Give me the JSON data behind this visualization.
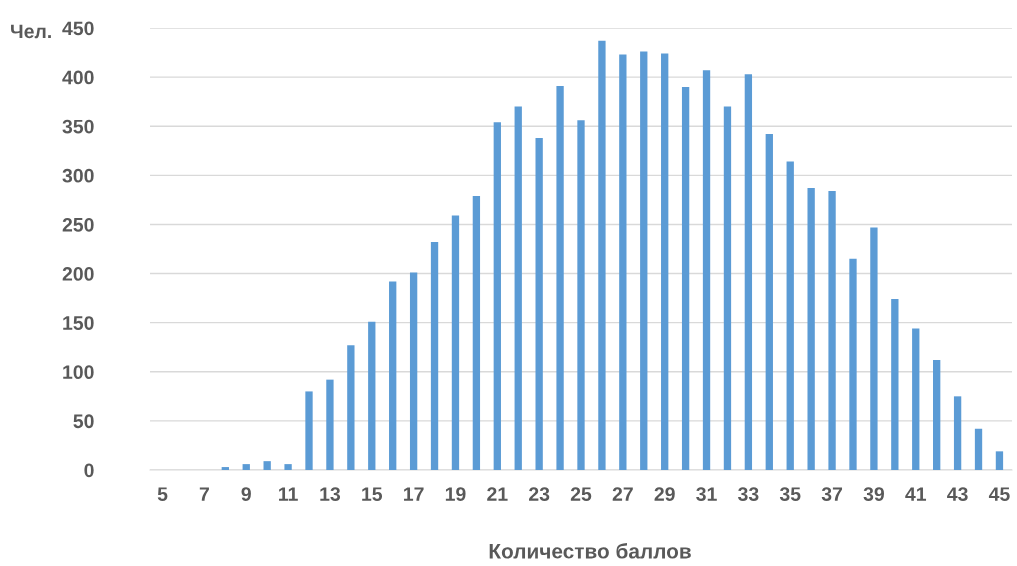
{
  "chart_data": {
    "type": "bar",
    "xlabel": "Количество баллов",
    "ylabel": "Чел.",
    "categories": [
      "5",
      null,
      "7",
      null,
      "9",
      null,
      "11",
      null,
      "13",
      null,
      "15",
      null,
      "17",
      null,
      "19",
      null,
      "21",
      null,
      "23",
      null,
      "25",
      null,
      "27",
      null,
      "29",
      null,
      "31",
      null,
      "33",
      null,
      "35",
      null,
      "37",
      null,
      "39",
      null,
      "41",
      null,
      "43",
      null,
      "45"
    ],
    "values": [
      0,
      0,
      0,
      3,
      6,
      9,
      6,
      80,
      92,
      127,
      151,
      192,
      201,
      232,
      259,
      279,
      354,
      370,
      338,
      391,
      356,
      437,
      423,
      426,
      424,
      390,
      407,
      370,
      403,
      342,
      314,
      287,
      284,
      215,
      247,
      174,
      144,
      112,
      75,
      42,
      19
    ],
    "color": "#5b9bd5",
    "ylim": [
      0,
      450
    ],
    "yticks": [
      0,
      50,
      100,
      150,
      200,
      250,
      300,
      350,
      400,
      450
    ],
    "grid": "y",
    "legend": false
  }
}
